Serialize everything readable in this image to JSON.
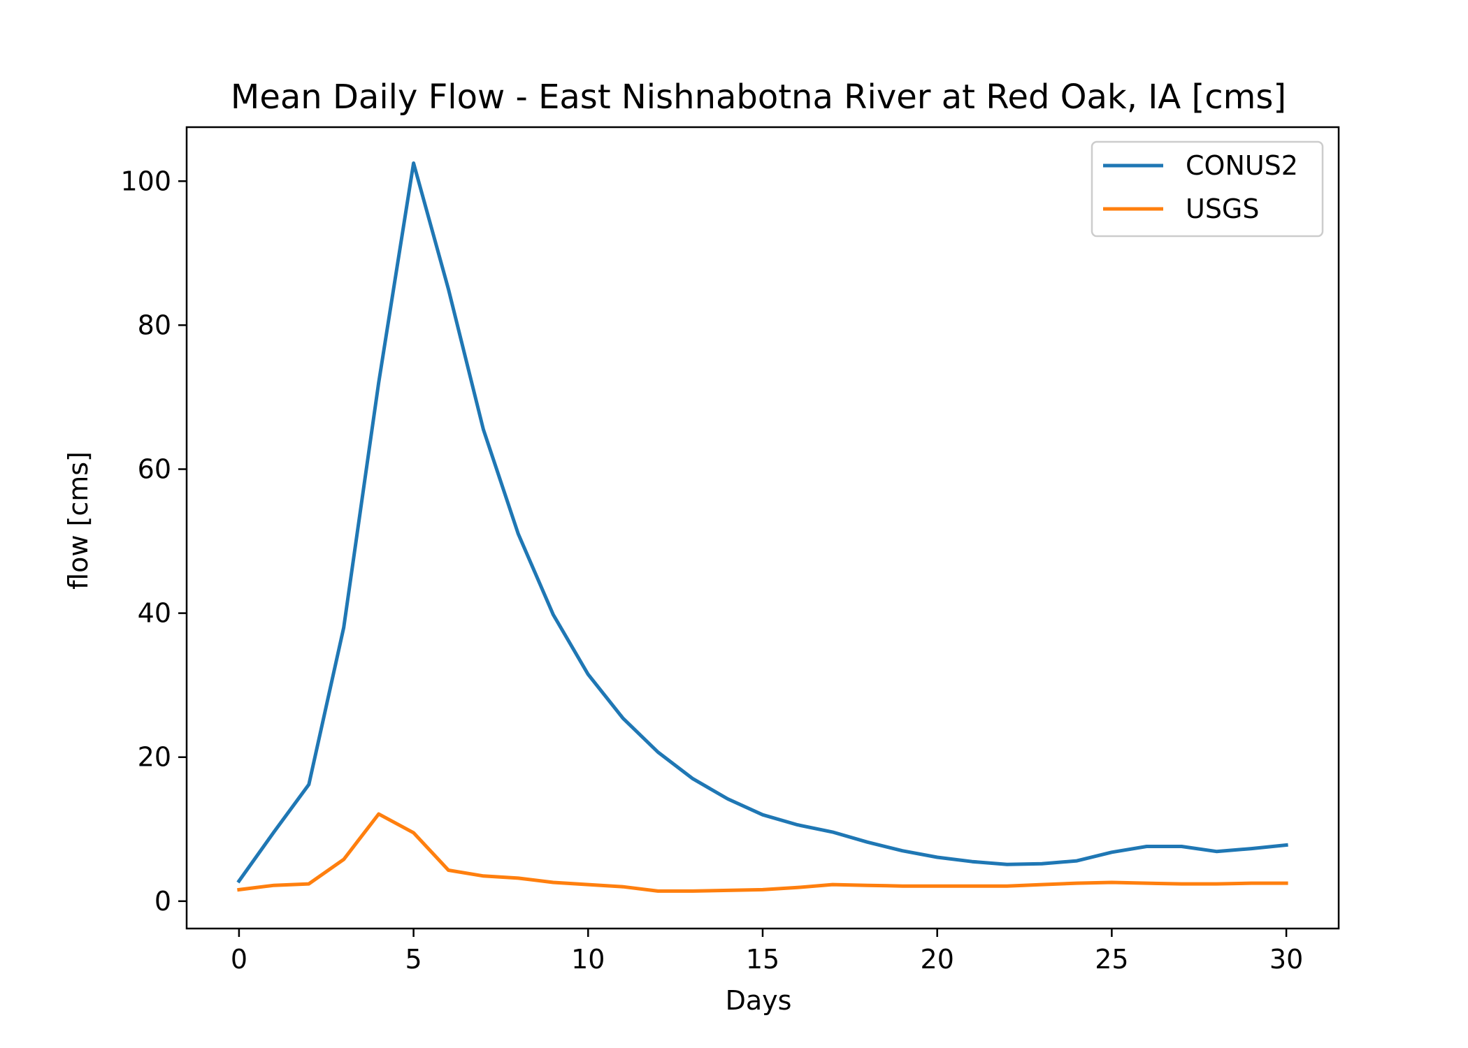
{
  "chart_data": {
    "type": "line",
    "title": "Mean Daily Flow - East Nishnabotna River at Red Oak, IA [cms]",
    "xlabel": "Days",
    "ylabel": "flow [cms]",
    "xlim": [
      -1.5,
      31.5
    ],
    "ylim": [
      -3.8,
      107.5
    ],
    "xticks": [
      0,
      5,
      10,
      15,
      20,
      25,
      30
    ],
    "yticks": [
      0,
      20,
      40,
      60,
      80,
      100
    ],
    "grid": false,
    "legend_position": "top-right",
    "x": [
      0,
      1,
      2,
      3,
      4,
      5,
      6,
      7,
      8,
      9,
      10,
      11,
      12,
      13,
      14,
      15,
      16,
      17,
      18,
      19,
      20,
      21,
      22,
      23,
      24,
      25,
      26,
      27,
      28,
      29,
      30
    ],
    "series": [
      {
        "name": "CONUS2",
        "color": "#1f77b4",
        "values": [
          2.8,
          9.6,
          16.2,
          38.0,
          72.0,
          102.5,
          85.0,
          65.5,
          51.0,
          39.8,
          31.5,
          25.4,
          20.7,
          17.0,
          14.2,
          12.0,
          10.6,
          9.6,
          8.2,
          7.0,
          6.1,
          5.5,
          5.1,
          5.2,
          5.6,
          6.8,
          7.6,
          7.6,
          6.9,
          7.3,
          7.8
        ]
      },
      {
        "name": "USGS",
        "color": "#ff7f0e",
        "values": [
          1.6,
          2.2,
          2.4,
          5.8,
          12.1,
          9.5,
          4.3,
          3.5,
          3.2,
          2.6,
          2.3,
          2.0,
          1.4,
          1.4,
          1.5,
          1.6,
          1.9,
          2.3,
          2.2,
          2.1,
          2.1,
          2.1,
          2.1,
          2.3,
          2.5,
          2.6,
          2.5,
          2.4,
          2.4,
          2.5,
          2.5
        ]
      }
    ]
  }
}
